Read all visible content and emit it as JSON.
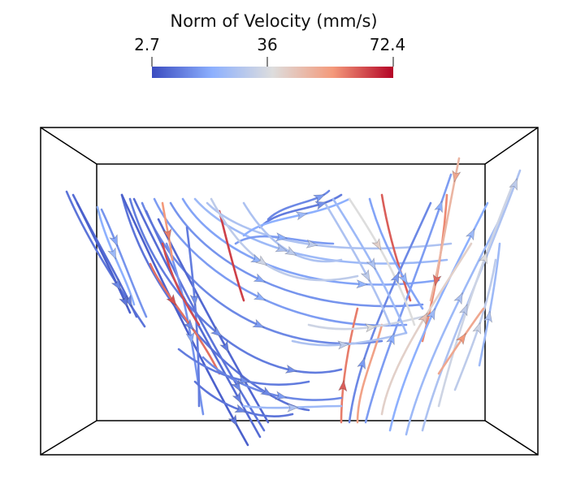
{
  "colorbar": {
    "title": "Norm of Velocity (mm/s)",
    "min_label": "2.7",
    "mid_label": "36",
    "max_label": "72.4",
    "min_value": 2.7,
    "mid_value": 36,
    "max_value": 72.4,
    "colormap": "cool-to-warm",
    "colors": [
      "#3b4cc0",
      "#8db0fe",
      "#dddddd",
      "#f49a7b",
      "#b40426"
    ]
  },
  "scene": {
    "view": "3d-box-perspective",
    "glyph": "arrow",
    "background": "#ffffff",
    "frame_color": "#000000"
  }
}
